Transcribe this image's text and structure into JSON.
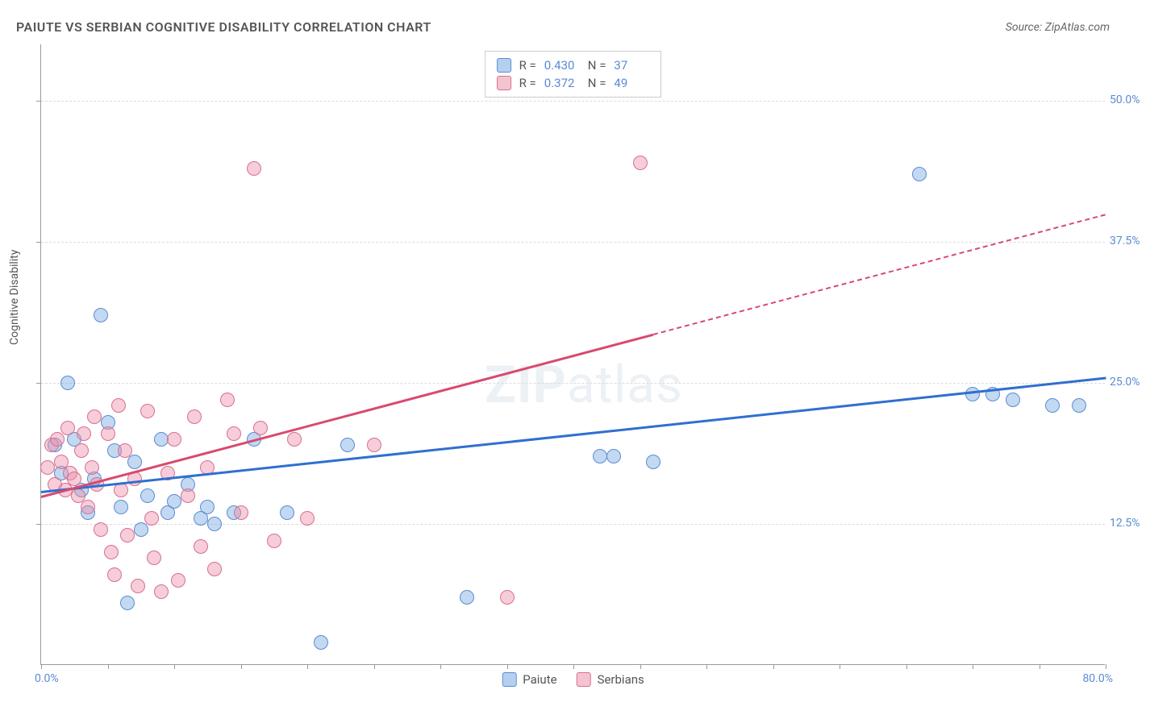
{
  "title": "PAIUTE VS SERBIAN COGNITIVE DISABILITY CORRELATION CHART",
  "source": "Source: ZipAtlas.com",
  "ylabel": "Cognitive Disability",
  "watermark_bold": "ZIP",
  "watermark_rest": "atlas",
  "chart": {
    "type": "scatter",
    "xlim": [
      0,
      80
    ],
    "ylim": [
      0,
      55
    ],
    "x_tick_start": 0,
    "x_tick_step": 5,
    "x_min_label": "0.0%",
    "x_max_label": "80.0%",
    "y_gridlines": [
      12.5,
      25.0,
      37.5,
      50.0
    ],
    "y_grid_labels": [
      "12.5%",
      "25.0%",
      "37.5%",
      "50.0%"
    ],
    "grid_color": "#dcdcdc",
    "axis_color": "#999999",
    "background_color": "#ffffff",
    "label_color": "#5b8bd4",
    "marker_radius": 9,
    "series": [
      {
        "name": "Paiute",
        "fill": "rgba(120,170,225,0.45)",
        "stroke": "#5b8bd4",
        "trend_color": "#2f6fd0",
        "R": "0.430",
        "N": "37",
        "trend": {
          "x1": 0,
          "y1": 15.4,
          "x2": 80,
          "y2": 25.5,
          "dash_from_x": null
        },
        "points": [
          [
            1.0,
            19.5
          ],
          [
            1.5,
            17.0
          ],
          [
            2.0,
            25.0
          ],
          [
            2.5,
            20.0
          ],
          [
            3.0,
            15.5
          ],
          [
            3.5,
            13.5
          ],
          [
            4.0,
            16.5
          ],
          [
            4.5,
            31.0
          ],
          [
            5.0,
            21.5
          ],
          [
            5.5,
            19.0
          ],
          [
            6.0,
            14.0
          ],
          [
            6.5,
            5.5
          ],
          [
            7.0,
            18.0
          ],
          [
            7.5,
            12.0
          ],
          [
            8.0,
            15.0
          ],
          [
            9.0,
            20.0
          ],
          [
            9.5,
            13.5
          ],
          [
            10.0,
            14.5
          ],
          [
            11.0,
            16.0
          ],
          [
            12.0,
            13.0
          ],
          [
            12.5,
            14.0
          ],
          [
            13.0,
            12.5
          ],
          [
            14.5,
            13.5
          ],
          [
            16.0,
            20.0
          ],
          [
            18.5,
            13.5
          ],
          [
            21.0,
            2.0
          ],
          [
            23.0,
            19.5
          ],
          [
            32.0,
            6.0
          ],
          [
            42.0,
            18.5
          ],
          [
            43.0,
            18.5
          ],
          [
            46.0,
            18.0
          ],
          [
            66.0,
            43.5
          ],
          [
            70.0,
            24.0
          ],
          [
            71.5,
            24.0
          ],
          [
            73.0,
            23.5
          ],
          [
            76.0,
            23.0
          ],
          [
            78.0,
            23.0
          ]
        ]
      },
      {
        "name": "Serbians",
        "fill": "rgba(235,145,170,0.45)",
        "stroke": "#d86f8e",
        "trend_color": "#d84a6f",
        "R": "0.372",
        "N": "49",
        "trend": {
          "x1": 0,
          "y1": 15.0,
          "x2": 80,
          "y2": 40.0,
          "dash_from_x": 46
        },
        "points": [
          [
            0.5,
            17.5
          ],
          [
            0.8,
            19.5
          ],
          [
            1.0,
            16.0
          ],
          [
            1.2,
            20.0
          ],
          [
            1.5,
            18.0
          ],
          [
            1.8,
            15.5
          ],
          [
            2.0,
            21.0
          ],
          [
            2.2,
            17.0
          ],
          [
            2.5,
            16.5
          ],
          [
            2.8,
            15.0
          ],
          [
            3.0,
            19.0
          ],
          [
            3.2,
            20.5
          ],
          [
            3.5,
            14.0
          ],
          [
            3.8,
            17.5
          ],
          [
            4.0,
            22.0
          ],
          [
            4.2,
            16.0
          ],
          [
            4.5,
            12.0
          ],
          [
            5.0,
            20.5
          ],
          [
            5.3,
            10.0
          ],
          [
            5.5,
            8.0
          ],
          [
            5.8,
            23.0
          ],
          [
            6.0,
            15.5
          ],
          [
            6.3,
            19.0
          ],
          [
            6.5,
            11.5
          ],
          [
            7.0,
            16.5
          ],
          [
            7.3,
            7.0
          ],
          [
            8.0,
            22.5
          ],
          [
            8.3,
            13.0
          ],
          [
            8.5,
            9.5
          ],
          [
            9.0,
            6.5
          ],
          [
            9.5,
            17.0
          ],
          [
            10.0,
            20.0
          ],
          [
            10.3,
            7.5
          ],
          [
            11.0,
            15.0
          ],
          [
            11.5,
            22.0
          ],
          [
            12.0,
            10.5
          ],
          [
            12.5,
            17.5
          ],
          [
            13.0,
            8.5
          ],
          [
            14.0,
            23.5
          ],
          [
            14.5,
            20.5
          ],
          [
            15.0,
            13.5
          ],
          [
            16.0,
            44.0
          ],
          [
            16.5,
            21.0
          ],
          [
            17.5,
            11.0
          ],
          [
            19.0,
            20.0
          ],
          [
            20.0,
            13.0
          ],
          [
            25.0,
            19.5
          ],
          [
            35.0,
            6.0
          ],
          [
            45.0,
            44.5
          ]
        ]
      }
    ],
    "legend_top": {
      "rows": [
        {
          "swatch_fill": "rgba(120,170,225,0.55)",
          "swatch_stroke": "#5b8bd4",
          "R_label": "R =",
          "R_val": "0.430",
          "N_label": "N =",
          "N_val": "37"
        },
        {
          "swatch_fill": "rgba(235,145,170,0.55)",
          "swatch_stroke": "#d86f8e",
          "R_label": "R =",
          "R_val": "0.372",
          "N_label": "N =",
          "N_val": "49"
        }
      ]
    },
    "legend_bottom": [
      {
        "swatch_fill": "rgba(120,170,225,0.55)",
        "swatch_stroke": "#5b8bd4",
        "label": "Paiute"
      },
      {
        "swatch_fill": "rgba(235,145,170,0.55)",
        "swatch_stroke": "#d86f8e",
        "label": "Serbians"
      }
    ]
  }
}
